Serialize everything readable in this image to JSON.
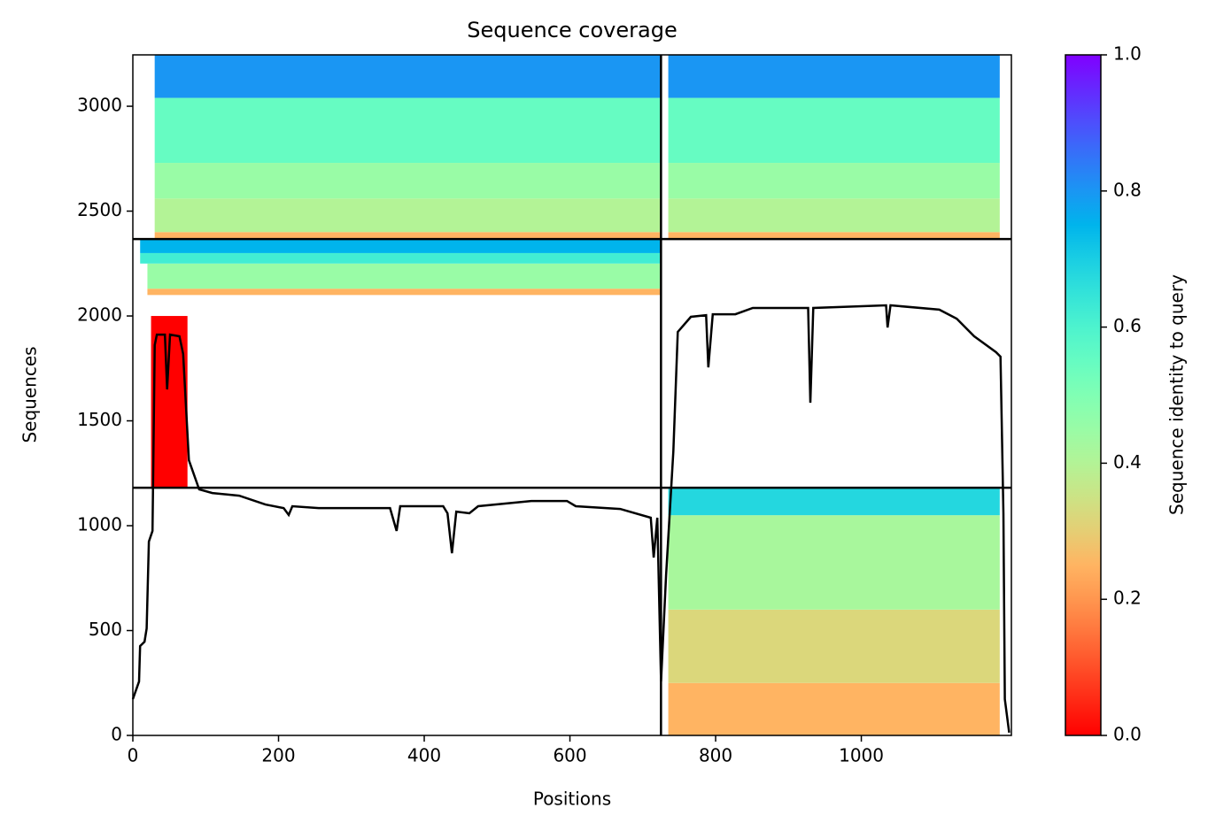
{
  "chart_data": {
    "type": "coverage",
    "title": "Sequence coverage",
    "x_label": "Positions",
    "y_label": "Sequences",
    "xlim": [
      0,
      1206
    ],
    "ylim": [
      0,
      3245
    ],
    "xticks": [
      0,
      200,
      400,
      600,
      800,
      1000
    ],
    "yticks": [
      0,
      500,
      1000,
      1500,
      2000,
      2500,
      3000
    ],
    "colormap": "rainbow_r",
    "colorbar": {
      "label": "Sequence identity to query",
      "lim": [
        0,
        1
      ],
      "ticks": [
        {
          "value": 0,
          "label": "0.0"
        },
        0.2,
        0.4,
        0.6,
        0.8,
        {
          "value": 1,
          "label": "1.0"
        }
      ]
    },
    "dividers": {
      "x": [
        725
      ],
      "y": [
        1181,
        2367
      ]
    },
    "blocks": [
      {
        "x": [
          30,
          725
        ],
        "y": [
          2367,
          2400
        ],
        "identity": 0.25
      },
      {
        "x": [
          30,
          725
        ],
        "y": [
          2400,
          2560
        ],
        "identity": 0.4
      },
      {
        "x": [
          30,
          725
        ],
        "y": [
          2560,
          2730
        ],
        "identity": 0.45
      },
      {
        "x": [
          30,
          725
        ],
        "y": [
          2730,
          3040
        ],
        "identity": 0.55
      },
      {
        "x": [
          30,
          725
        ],
        "y": [
          3040,
          3245
        ],
        "identity": 0.8
      },
      {
        "x": [
          735,
          1190
        ],
        "y": [
          2367,
          2400
        ],
        "identity": 0.25
      },
      {
        "x": [
          735,
          1190
        ],
        "y": [
          2400,
          2560
        ],
        "identity": 0.4
      },
      {
        "x": [
          735,
          1190
        ],
        "y": [
          2560,
          2730
        ],
        "identity": 0.45
      },
      {
        "x": [
          735,
          1190
        ],
        "y": [
          2730,
          3040
        ],
        "identity": 0.55
      },
      {
        "x": [
          735,
          1190
        ],
        "y": [
          3040,
          3245
        ],
        "identity": 0.8
      },
      {
        "x": [
          25,
          75
        ],
        "y": [
          1181,
          2000
        ],
        "identity": 0
      },
      {
        "x": [
          20,
          725
        ],
        "y": [
          2100,
          2130
        ],
        "identity": 0.25
      },
      {
        "x": [
          20,
          725
        ],
        "y": [
          2130,
          2250
        ],
        "identity": 0.45
      },
      {
        "x": [
          10,
          725
        ],
        "y": [
          2250,
          2300
        ],
        "identity": 0.62
      },
      {
        "x": [
          10,
          725
        ],
        "y": [
          2300,
          2367
        ],
        "identity": 0.75
      },
      {
        "x": [
          735,
          1190
        ],
        "y": [
          0,
          250
        ],
        "identity": 0.25
      },
      {
        "x": [
          735,
          1190
        ],
        "y": [
          250,
          600
        ],
        "identity": 0.32
      },
      {
        "x": [
          735,
          1190
        ],
        "y": [
          600,
          1050
        ],
        "identity": 0.42
      },
      {
        "x": [
          735,
          1190
        ],
        "y": [
          1050,
          1181
        ],
        "identity": 0.68
      }
    ],
    "coverage": {
      "x": [
        0,
        8.5,
        10,
        16,
        19,
        22,
        27,
        30,
        33,
        44,
        47,
        51,
        64,
        69,
        77,
        91,
        109,
        146,
        182,
        207,
        214,
        219,
        255,
        353,
        362,
        367,
        426,
        432,
        438,
        444,
        462,
        474,
        547,
        596,
        608,
        669,
        711,
        715,
        720,
        725,
        732,
        742,
        748,
        766,
        787,
        790,
        796,
        827,
        851,
        927,
        930,
        934,
        1034,
        1036,
        1040,
        1107,
        1131,
        1155,
        1185,
        1191,
        1195,
        1197,
        1203
      ],
      "values": [
        173,
        257,
        426,
        447,
        510,
        924,
        975,
        1861,
        1911,
        1911,
        1650,
        1911,
        1903,
        1819,
        1312,
        1173,
        1156,
        1143,
        1101,
        1084,
        1051,
        1093,
        1084,
        1084,
        975,
        1093,
        1093,
        1059,
        869,
        1067,
        1059,
        1093,
        1118,
        1118,
        1093,
        1080,
        1038,
        848,
        1038,
        257,
        764,
        1354,
        1924,
        1996,
        2004,
        1755,
        2008,
        2008,
        2038,
        2038,
        1586,
        2038,
        2051,
        1945,
        2051,
        2030,
        1987,
        1903,
        1827,
        1806,
        1059,
        173,
        13
      ]
    }
  }
}
